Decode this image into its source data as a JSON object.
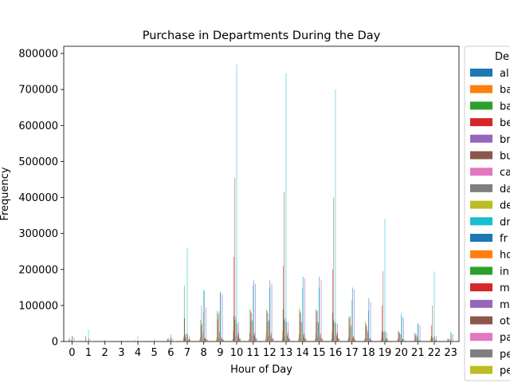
{
  "chart_data": {
    "type": "bar",
    "title": "Purchase in Departments During the Day",
    "xlabel": "Hour of Day",
    "ylabel": "Frequency",
    "ylim": [
      0,
      820000
    ],
    "yticks": [
      0,
      100000,
      200000,
      300000,
      400000,
      500000,
      600000,
      700000,
      800000
    ],
    "categories": [
      "0",
      "1",
      "2",
      "3",
      "4",
      "5",
      "6",
      "7",
      "8",
      "9",
      "10",
      "11",
      "12",
      "13",
      "14",
      "15",
      "16",
      "17",
      "18",
      "19",
      "20",
      "21",
      "22",
      "23"
    ],
    "legend": {
      "title": "De",
      "placement": "right-outside-clipped"
    },
    "colors": [
      "#1f77b4",
      "#ff7f0e",
      "#2ca02c",
      "#d62728",
      "#9467bd",
      "#8c564b",
      "#e377c2",
      "#7f7f7f",
      "#bcbd22",
      "#17becf",
      "#1f77b4",
      "#ff7f0e",
      "#2ca02c",
      "#d62728",
      "#9467bd",
      "#8c564b",
      "#e377c2",
      "#7f7f7f",
      "#bcbd22"
    ],
    "series": [
      {
        "name": "al",
        "values": [
          2000,
          1000,
          0,
          0,
          0,
          0,
          3000,
          9000,
          5000,
          5000,
          8000,
          8000,
          8000,
          8000,
          8000,
          8000,
          8000,
          6000,
          6000,
          5000,
          4000,
          3000,
          3000,
          2000
        ]
      },
      {
        "name": "ba",
        "values": [
          3000,
          2000,
          0,
          0,
          0,
          0,
          5000,
          15000,
          12000,
          12000,
          30000,
          25000,
          25000,
          30000,
          22000,
          22000,
          28000,
          12000,
          10000,
          12000,
          8000,
          4000,
          8000,
          3000
        ]
      },
      {
        "name": "ba",
        "values": [
          5000,
          4000,
          1000,
          1000,
          1000,
          2000,
          8000,
          155000,
          60000,
          85000,
          70000,
          90000,
          88000,
          90000,
          92000,
          90000,
          80000,
          70000,
          55000,
          30000,
          30000,
          25000,
          15000,
          8000
        ]
      },
      {
        "name": "be",
        "values": [
          10000,
          15000,
          2000,
          2000,
          3000,
          2000,
          10000,
          65000,
          45000,
          60000,
          235000,
          85000,
          85000,
          210000,
          85000,
          85000,
          200000,
          65000,
          50000,
          100000,
          28000,
          20000,
          45000,
          8000
        ]
      },
      {
        "name": "br",
        "values": [
          2000,
          1000,
          0,
          0,
          0,
          0,
          3000,
          12000,
          100000,
          75000,
          60000,
          55000,
          55000,
          60000,
          55000,
          55000,
          60000,
          40000,
          40000,
          25000,
          20000,
          15000,
          10000,
          5000
        ]
      },
      {
        "name": "bu",
        "values": [
          3000,
          2000,
          0,
          0,
          0,
          0,
          4000,
          20000,
          50000,
          80000,
          455000,
          80000,
          80000,
          415000,
          80000,
          85000,
          400000,
          70000,
          45000,
          195000,
          25000,
          20000,
          100000,
          5000
        ]
      },
      {
        "name": "ca",
        "values": [
          1000,
          1000,
          0,
          0,
          0,
          0,
          2000,
          8000,
          10000,
          10000,
          15000,
          15000,
          15000,
          15000,
          12000,
          12000,
          15000,
          10000,
          8000,
          6000,
          5000,
          3000,
          3000,
          2000
        ]
      },
      {
        "name": "da",
        "values": [
          4000,
          2000,
          1000,
          1000,
          1000,
          1000,
          6000,
          22000,
          25000,
          25000,
          70000,
          60000,
          60000,
          65000,
          55000,
          55000,
          55000,
          45000,
          30000,
          28000,
          20000,
          12000,
          12000,
          6000
        ]
      },
      {
        "name": "de",
        "values": [
          3000,
          2000,
          0,
          0,
          0,
          1000,
          5000,
          18000,
          80000,
          85000,
          60000,
          55000,
          55000,
          55000,
          50000,
          50000,
          55000,
          45000,
          25000,
          25000,
          20000,
          15000,
          10000,
          5000
        ]
      },
      {
        "name": "dr",
        "values": [
          15000,
          33000,
          5000,
          4000,
          15000,
          8000,
          20000,
          260000,
          145000,
          140000,
          770000,
          155000,
          150000,
          745000,
          150000,
          150000,
          700000,
          115000,
          85000,
          340000,
          80000,
          50000,
          195000,
          28000
        ]
      },
      {
        "name": "fr",
        "values": [
          15000,
          8000,
          2000,
          2000,
          2000,
          2000,
          12000,
          20000,
          140000,
          135000,
          50000,
          170000,
          170000,
          55000,
          180000,
          180000,
          50000,
          150000,
          120000,
          28000,
          70000,
          50000,
          15000,
          22000
        ]
      },
      {
        "name": "ho",
        "values": [
          2000,
          1000,
          0,
          0,
          0,
          0,
          2000,
          6000,
          10000,
          12000,
          20000,
          20000,
          20000,
          20000,
          18000,
          18000,
          20000,
          12000,
          10000,
          8000,
          6000,
          4000,
          4000,
          2000
        ]
      },
      {
        "name": "in",
        "values": [
          1000,
          1000,
          0,
          0,
          0,
          0,
          2000,
          5000,
          8000,
          8000,
          15000,
          15000,
          15000,
          15000,
          12000,
          12000,
          15000,
          10000,
          8000,
          6000,
          5000,
          3000,
          3000,
          2000
        ]
      },
      {
        "name": "m",
        "values": [
          2000,
          1000,
          0,
          0,
          0,
          0,
          3000,
          8000,
          10000,
          10000,
          25000,
          25000,
          25000,
          25000,
          22000,
          22000,
          25000,
          15000,
          10000,
          10000,
          8000,
          5000,
          5000,
          3000
        ]
      },
      {
        "name": "m",
        "values": [
          10000,
          5000,
          1000,
          1000,
          1000,
          1000,
          8000,
          15000,
          95000,
          130000,
          55000,
          160000,
          160000,
          55000,
          175000,
          170000,
          50000,
          145000,
          110000,
          25000,
          65000,
          45000,
          15000,
          20000
        ]
      },
      {
        "name": "ot",
        "values": [
          1000,
          1000,
          0,
          0,
          0,
          0,
          1000,
          3000,
          5000,
          5000,
          8000,
          8000,
          8000,
          8000,
          7000,
          7000,
          8000,
          5000,
          4000,
          3000,
          3000,
          2000,
          2000,
          1000
        ]
      },
      {
        "name": "pa",
        "values": [
          1000,
          1000,
          0,
          0,
          0,
          0,
          1000,
          4000,
          6000,
          6000,
          10000,
          10000,
          10000,
          10000,
          9000,
          9000,
          10000,
          7000,
          5000,
          4000,
          3000,
          2000,
          2000,
          1000
        ]
      },
      {
        "name": "pe",
        "values": [
          1000,
          1000,
          0,
          0,
          0,
          0,
          1000,
          3000,
          5000,
          5000,
          8000,
          8000,
          8000,
          8000,
          7000,
          7000,
          8000,
          5000,
          4000,
          3000,
          3000,
          2000,
          2000,
          1000
        ]
      },
      {
        "name": "pe",
        "values": [
          1000,
          1000,
          0,
          0,
          0,
          0,
          1000,
          3000,
          5000,
          5000,
          8000,
          8000,
          8000,
          8000,
          7000,
          7000,
          8000,
          5000,
          4000,
          3000,
          3000,
          2000,
          2000,
          1000
        ]
      }
    ]
  }
}
